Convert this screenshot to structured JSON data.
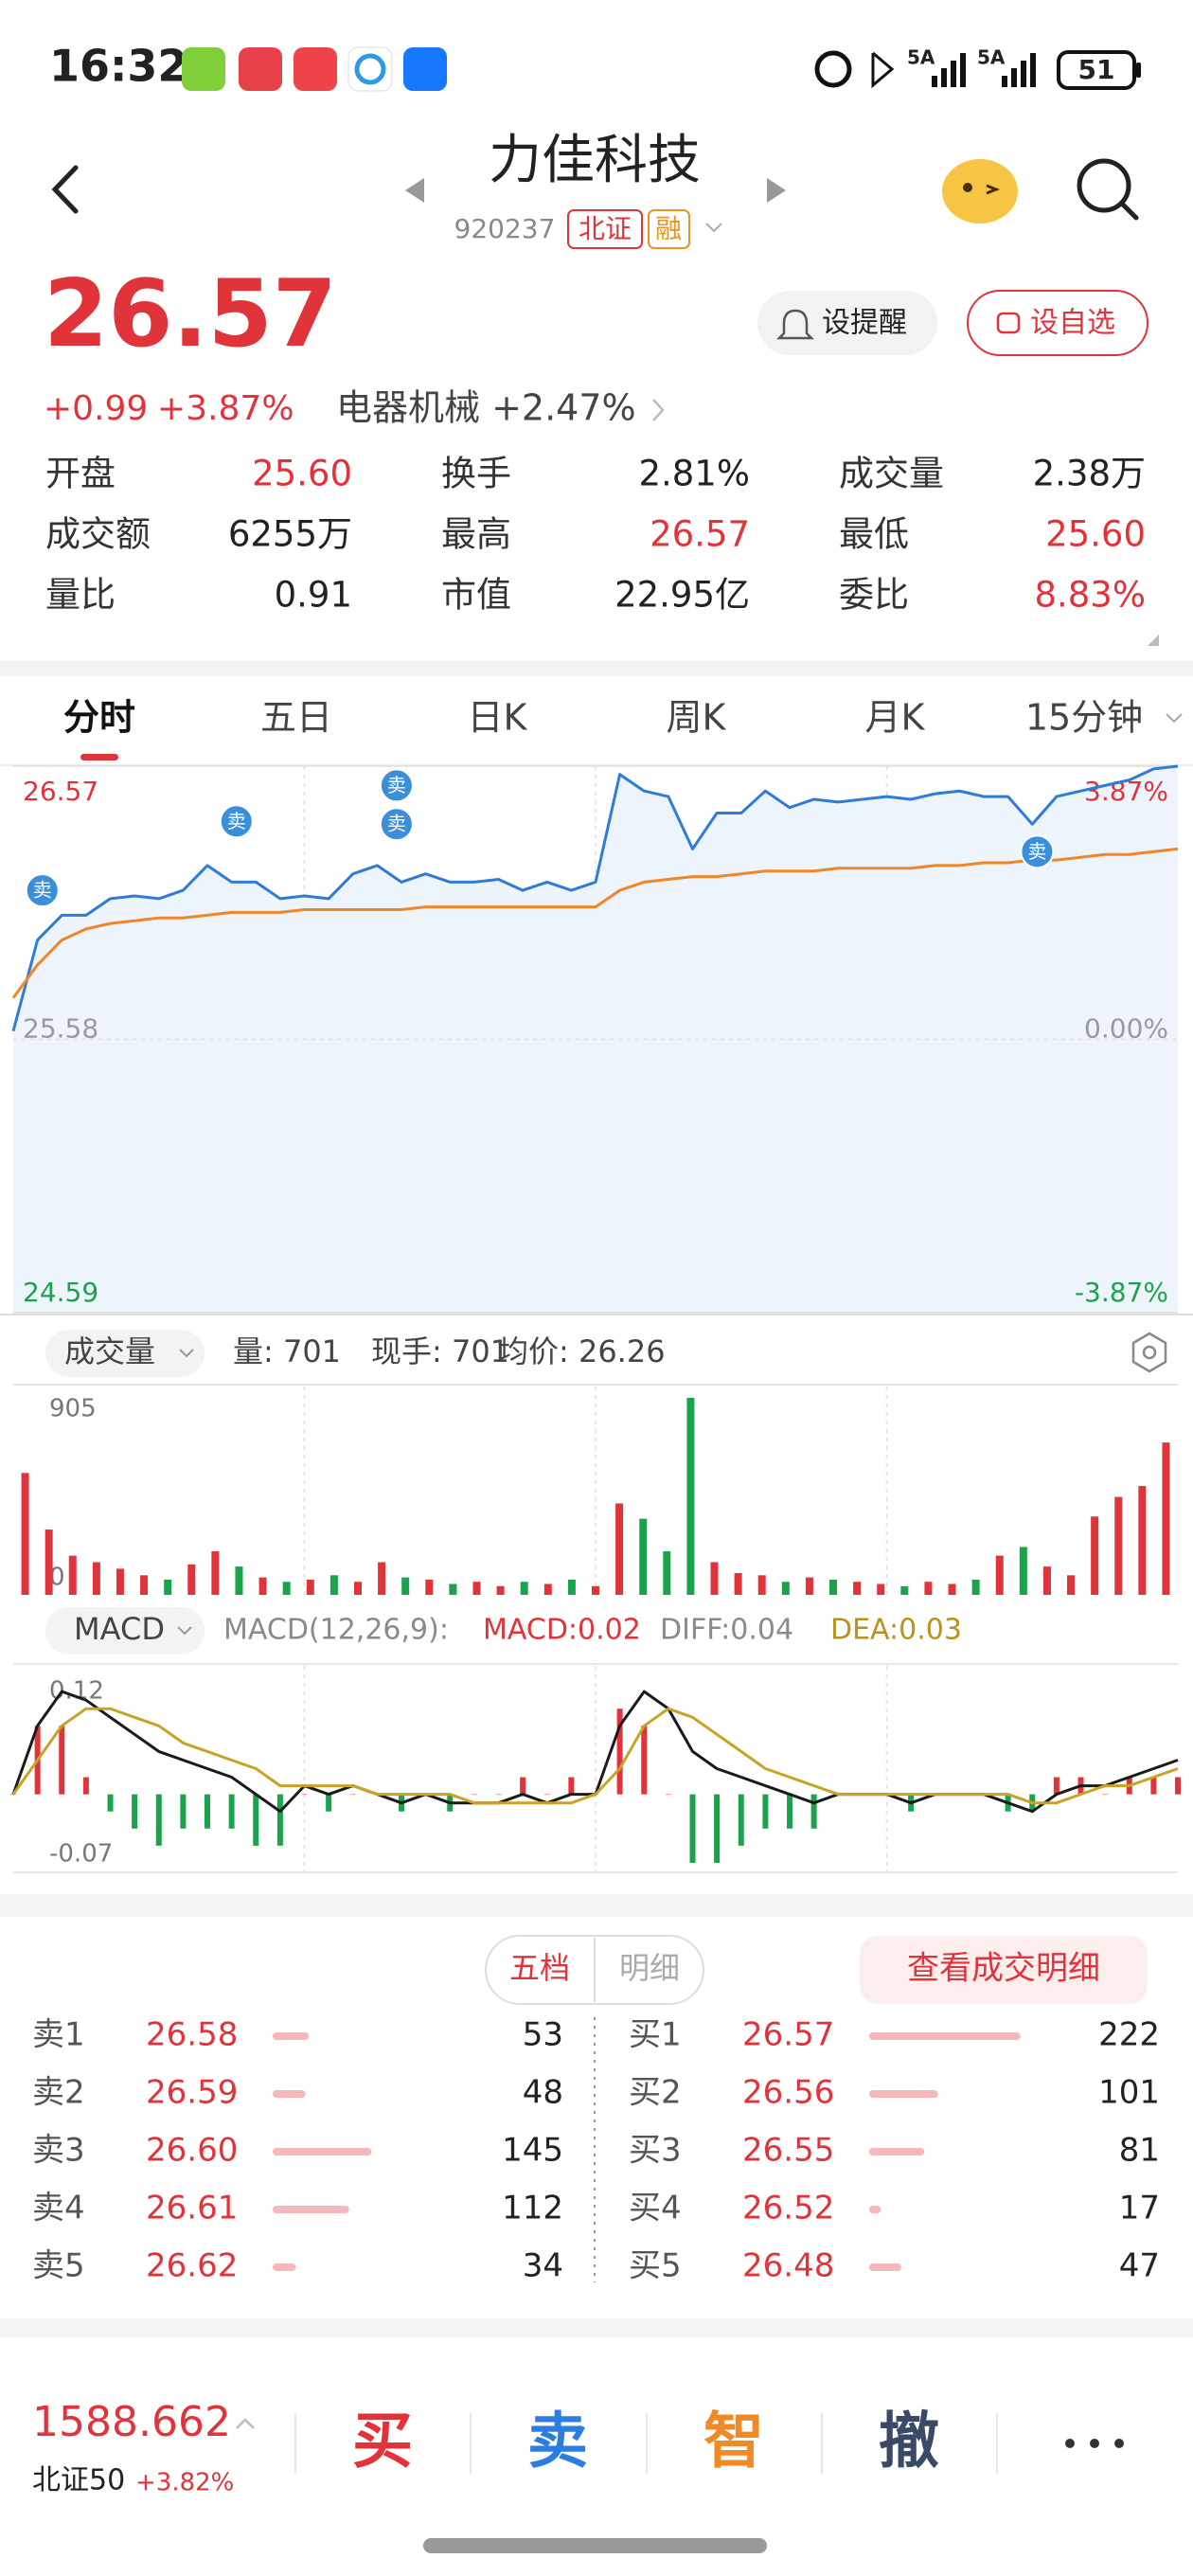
{
  "status_bar": {
    "time": "16:32",
    "network": [
      "5A",
      "5A"
    ],
    "battery": "51"
  },
  "header": {
    "title": "力佳科技",
    "code": "920237",
    "tags": [
      "北证",
      "融"
    ]
  },
  "quote": {
    "price": "26.57",
    "change": "+0.99",
    "change_pct": "+3.87%",
    "sector": "电器机械 +2.47%",
    "buttons": [
      "设提醒",
      "设自选"
    ],
    "stats": [
      {
        "label": "开盘",
        "value": "25.60",
        "color": "#e0333a"
      },
      {
        "label": "换手",
        "value": "2.81%",
        "color": "#222222"
      },
      {
        "label": "成交量",
        "value": "2.38万",
        "color": "#222222"
      },
      {
        "label": "成交额",
        "value": "6255万",
        "color": "#222222"
      },
      {
        "label": "最高",
        "value": "26.57",
        "color": "#e0333a"
      },
      {
        "label": "最低",
        "value": "25.60",
        "color": "#e0333a"
      },
      {
        "label": "量比",
        "value": "0.91",
        "color": "#222222"
      },
      {
        "label": "市值",
        "value": "22.95亿",
        "color": "#222222"
      },
      {
        "label": "委比",
        "value": "8.83%",
        "color": "#e0333a"
      }
    ]
  },
  "tabs": {
    "items": [
      "分时",
      "五日",
      "日K",
      "周K",
      "月K",
      "15分钟"
    ],
    "active": 0
  },
  "intraday_chart": {
    "type": "line",
    "x": [
      0,
      5,
      10,
      15,
      20,
      25,
      30,
      35,
      40,
      45,
      50,
      55,
      60,
      65,
      70,
      75,
      80,
      85,
      90,
      95,
      100,
      105,
      110,
      115,
      120,
      125,
      130,
      135,
      140,
      145,
      150,
      155,
      160,
      165,
      170,
      175,
      180,
      185,
      190,
      195,
      200,
      205,
      210,
      215,
      220,
      225,
      230,
      235,
      240
    ],
    "xlim": [
      0,
      240
    ],
    "series": [
      {
        "color": "#2f7bd8",
        "values": [
          25.61,
          25.94,
          26.03,
          26.03,
          26.09,
          26.1,
          26.09,
          26.12,
          26.21,
          26.15,
          26.15,
          26.09,
          26.1,
          26.09,
          26.18,
          26.21,
          26.15,
          26.18,
          26.15,
          26.15,
          26.16,
          26.12,
          26.15,
          26.12,
          26.15,
          26.54,
          26.48,
          26.46,
          26.27,
          26.4,
          26.4,
          26.48,
          26.42,
          26.45,
          26.44,
          26.45,
          26.46,
          26.45,
          26.47,
          26.48,
          26.46,
          26.46,
          26.36,
          26.46,
          26.48,
          26.5,
          26.52,
          26.56,
          26.57
        ]
      },
      {
        "color": "#f0862a",
        "values": [
          25.73,
          25.85,
          25.94,
          25.98,
          26.0,
          26.01,
          26.02,
          26.02,
          26.03,
          26.04,
          26.04,
          26.04,
          26.05,
          26.05,
          26.05,
          26.05,
          26.05,
          26.06,
          26.06,
          26.06,
          26.06,
          26.06,
          26.06,
          26.06,
          26.06,
          26.12,
          26.15,
          26.16,
          26.17,
          26.17,
          26.18,
          26.19,
          26.19,
          26.19,
          26.2,
          26.2,
          26.2,
          26.2,
          26.21,
          26.21,
          26.22,
          26.22,
          26.23,
          26.23,
          26.24,
          26.25,
          26.25,
          26.26,
          26.27
        ]
      }
    ],
    "fill": "#eef4fc",
    "ylim": [
      24.59,
      26.57
    ],
    "yticks": [
      26.57,
      25.58,
      24.59
    ],
    "ytick_colors": [
      "#e0333a",
      "#9a9a9a",
      "#1aa34a"
    ],
    "y2lim": [
      -3.87,
      3.87
    ],
    "y2ticks": [
      {
        "value": 3.87,
        "label": "3.87%"
      },
      {
        "value": 0,
        "label": "0.00%"
      },
      {
        "value": -3.87,
        "label": "-3.87%"
      }
    ],
    "markers": [
      {
        "x": 6,
        "y": 26.12,
        "label": "卖"
      },
      {
        "x": 46,
        "y": 26.37,
        "label": "卖"
      },
      {
        "x": 79,
        "y": 26.5,
        "label": "卖"
      },
      {
        "x": 79,
        "y": 26.36,
        "label": "卖"
      },
      {
        "x": 211,
        "y": 26.26,
        "label": "卖"
      }
    ],
    "marker_color": "#3b8ed8",
    "grid": true
  },
  "volume_panel": {
    "selector": "成交量",
    "stats": [
      "量: 701",
      "现手: 701",
      "均价: 26.26"
    ],
    "chart": {
      "type": "bar",
      "values": [
        560,
        300,
        180,
        150,
        120,
        90,
        70,
        140,
        200,
        130,
        80,
        60,
        70,
        90,
        60,
        150,
        80,
        70,
        50,
        60,
        40,
        60,
        50,
        70,
        40,
        420,
        350,
        200,
        905,
        150,
        100,
        90,
        60,
        80,
        70,
        60,
        50,
        40,
        60,
        50,
        70,
        180,
        220,
        130,
        90,
        360,
        450,
        500,
        700
      ],
      "up_color": "#e0333a",
      "down_color": "#1aa34a",
      "ylim": [
        0,
        905
      ],
      "yticks": [
        0,
        905
      ]
    }
  },
  "macd_panel": {
    "selector": "MACD",
    "params": "MACD(12,26,9):",
    "macd": "MACD:0.02",
    "diff": "DIFF:0.04",
    "dea": "DEA:0.03",
    "chart": {
      "type": "macd",
      "histogram": [
        0,
        0.08,
        0.08,
        0.02,
        -0.02,
        -0.04,
        -0.06,
        -0.04,
        -0.04,
        -0.04,
        -0.06,
        -0.06,
        0,
        -0.02,
        0,
        0,
        -0.02,
        0,
        -0.02,
        0,
        0,
        0.02,
        0,
        0.02,
        0,
        0.1,
        0.08,
        0,
        -0.08,
        -0.08,
        -0.06,
        -0.04,
        -0.04,
        -0.04,
        0,
        0,
        0,
        -0.02,
        0,
        0,
        0,
        -0.02,
        -0.02,
        0.02,
        0.02,
        0,
        0.02,
        0.02,
        0.02
      ],
      "series": [
        {
          "color": "#1a1a1a",
          "values": [
            0.0,
            0.08,
            0.12,
            0.11,
            0.09,
            0.07,
            0.05,
            0.04,
            0.03,
            0.02,
            0.0,
            -0.02,
            0.01,
            0.0,
            0.01,
            0.0,
            -0.01,
            0.0,
            -0.01,
            -0.01,
            -0.01,
            0.0,
            -0.01,
            0.0,
            0.0,
            0.08,
            0.12,
            0.1,
            0.05,
            0.03,
            0.02,
            0.01,
            0.0,
            -0.01,
            0.0,
            0.0,
            0.0,
            -0.01,
            0.0,
            0.0,
            0.0,
            -0.01,
            -0.02,
            0.0,
            0.01,
            0.01,
            0.02,
            0.03,
            0.04
          ]
        },
        {
          "color": "#c9a227",
          "values": [
            0.0,
            0.04,
            0.08,
            0.1,
            0.1,
            0.09,
            0.08,
            0.06,
            0.05,
            0.04,
            0.03,
            0.01,
            0.01,
            0.01,
            0.01,
            0.0,
            0.0,
            0.0,
            0.0,
            -0.01,
            -0.01,
            -0.01,
            -0.01,
            -0.01,
            0.0,
            0.03,
            0.08,
            0.1,
            0.09,
            0.07,
            0.05,
            0.03,
            0.02,
            0.01,
            0.0,
            0.0,
            0.0,
            0.0,
            0.0,
            0.0,
            0.0,
            0.0,
            -0.01,
            -0.01,
            0.0,
            0.01,
            0.01,
            0.02,
            0.03
          ]
        }
      ],
      "up_color": "#e0333a",
      "down_color": "#1aa34a",
      "ylim": [
        -0.09,
        0.15
      ],
      "yticks": [
        0.12,
        -0.07
      ]
    }
  },
  "order_book": {
    "tabs": [
      "五档",
      "明细"
    ],
    "detail_button": "查看成交明细",
    "asks": [
      {
        "label": "卖1",
        "price": "26.58",
        "qty": 53
      },
      {
        "label": "卖2",
        "price": "26.59",
        "qty": 48
      },
      {
        "label": "卖3",
        "price": "26.60",
        "qty": 145
      },
      {
        "label": "卖4",
        "price": "26.61",
        "qty": 112
      },
      {
        "label": "卖5",
        "price": "26.62",
        "qty": 34
      }
    ],
    "bids": [
      {
        "label": "买1",
        "price": "26.57",
        "qty": 222
      },
      {
        "label": "买2",
        "price": "26.56",
        "qty": 101
      },
      {
        "label": "买3",
        "price": "26.55",
        "qty": 81
      },
      {
        "label": "买4",
        "price": "26.52",
        "qty": 17
      },
      {
        "label": "买5",
        "price": "26.48",
        "qty": 47
      }
    ],
    "bar_color": "#f5b8ba"
  },
  "bottom_bar": {
    "index_value": "1588.662",
    "index_name": "北证50",
    "index_change": "+3.82%",
    "actions": [
      {
        "label": "买",
        "color": "#e0333a"
      },
      {
        "label": "卖",
        "color": "#2b7de0"
      },
      {
        "label": "智",
        "color": "#f08a24"
      },
      {
        "label": "撤",
        "color": "#3a4a66"
      }
    ]
  }
}
